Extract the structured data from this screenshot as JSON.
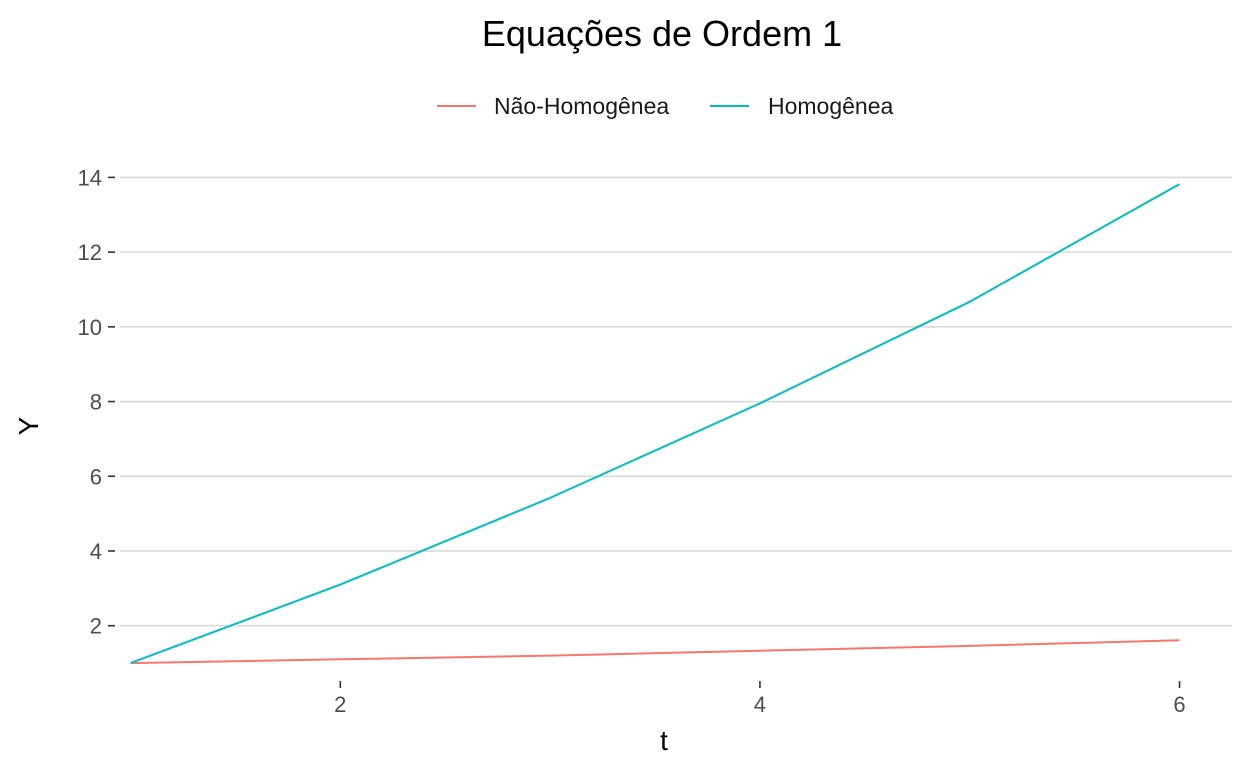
{
  "chart_data": {
    "type": "line",
    "title": "Equações de Ordem 1",
    "xlabel": "t",
    "ylabel": "Y",
    "xlim": [
      0.95,
      6.25
    ],
    "ylim": [
      0.6,
      14.6
    ],
    "x_ticks": [
      2,
      4,
      6
    ],
    "y_ticks": [
      2,
      4,
      6,
      8,
      10,
      12,
      14
    ],
    "grid": "horizontal-major",
    "legend_position": "top",
    "x": [
      1,
      2,
      3,
      4,
      5,
      6
    ],
    "series": [
      {
        "name": "Não-Homogênea",
        "color": "#F8766D",
        "values": [
          1.0,
          1.1,
          1.2,
          1.33,
          1.46,
          1.61
        ]
      },
      {
        "name": "Homogênea",
        "color": "#00BFC4",
        "values": [
          1.0,
          3.1,
          5.42,
          7.95,
          10.67,
          13.82
        ]
      }
    ]
  }
}
